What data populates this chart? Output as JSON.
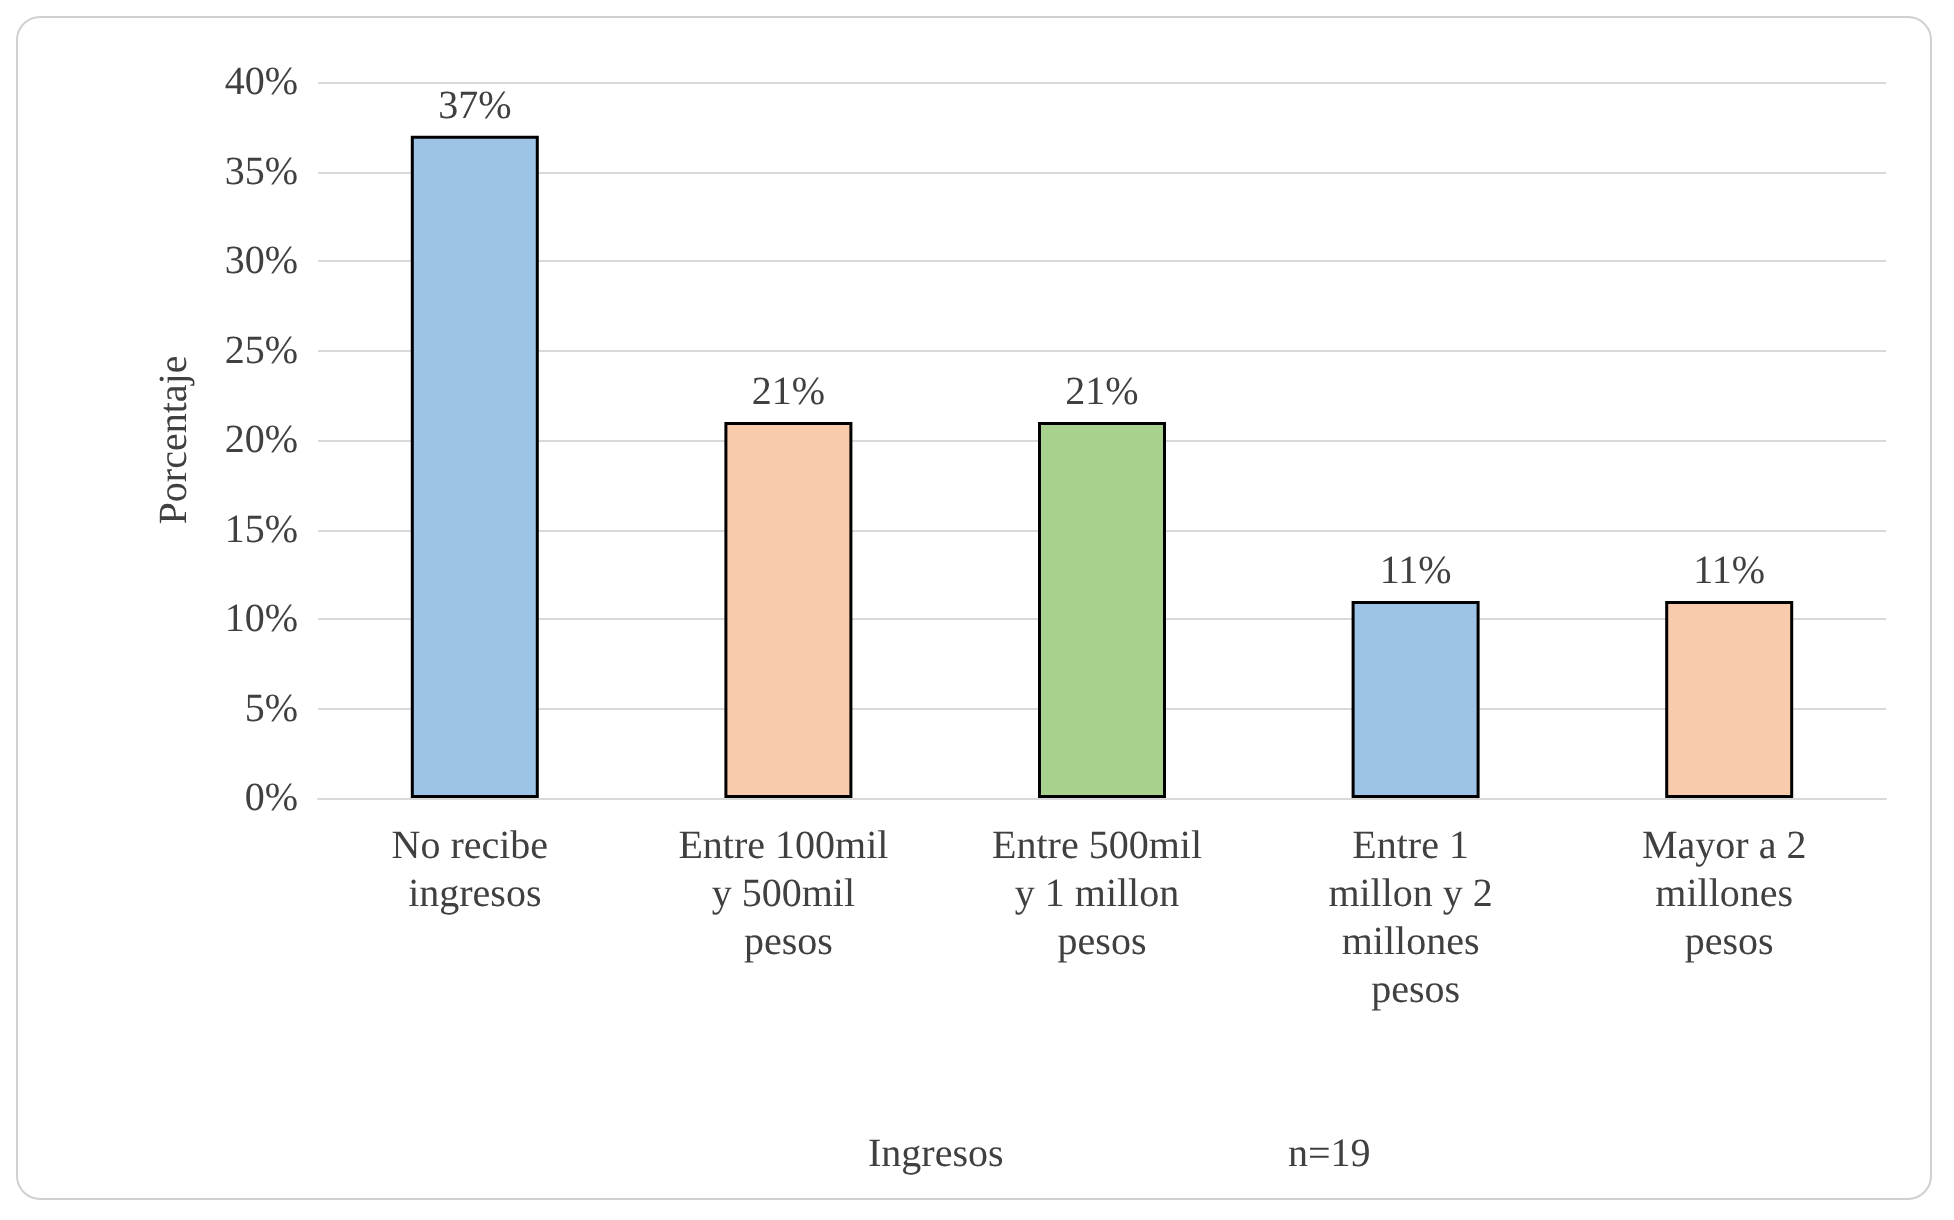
{
  "chart_data": {
    "type": "bar",
    "categories": [
      "No recibe ingresos",
      "Entre 100mil y 500mil pesos",
      "Entre 500mil y 1 millon pesos",
      "Entre 1 millon y 2 millones pesos",
      "Mayor a 2 millones pesos"
    ],
    "values": [
      37,
      21,
      21,
      11,
      11
    ],
    "colors": [
      "#9dc3e6",
      "#f8cbad",
      "#a9d18e",
      "#9dc3e6",
      "#f8cbad"
    ],
    "value_labels": [
      "37%",
      "21%",
      "21%",
      "11%",
      "11%"
    ],
    "xlabel": "Ingresos",
    "ylabel": "Porcentaje",
    "annotations": [
      "n=19"
    ],
    "ylim": [
      0,
      40
    ],
    "yticks": [
      {
        "value": 0,
        "label": "0%"
      },
      {
        "value": 5,
        "label": "5%"
      },
      {
        "value": 10,
        "label": "10%"
      },
      {
        "value": 15,
        "label": "15%"
      },
      {
        "value": 20,
        "label": "20%"
      },
      {
        "value": 25,
        "label": "25%"
      },
      {
        "value": 30,
        "label": "30%"
      },
      {
        "value": 35,
        "label": "35%"
      },
      {
        "value": 40,
        "label": "40%"
      }
    ],
    "grid": "y"
  }
}
